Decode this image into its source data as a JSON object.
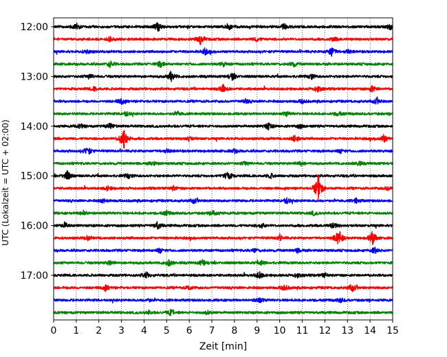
{
  "chart_data": {
    "type": "line",
    "title": "",
    "xlabel": "Zeit  [min]",
    "ylabel": "UTC (Lokalzeit = UTC + 02:00)",
    "xlim": [
      0,
      15
    ],
    "x_ticks": [
      "0",
      "1",
      "2",
      "3",
      "4",
      "5",
      "6",
      "7",
      "8",
      "9",
      "10",
      "11",
      "12",
      "13",
      "14",
      "15"
    ],
    "y_ticks": [
      "12:00",
      "13:00",
      "14:00",
      "15:00",
      "16:00",
      "17:00"
    ],
    "grid": "vertical dotted",
    "line_colors": [
      "#000000",
      "#ff0000",
      "#0000ff",
      "#008000"
    ],
    "trace_interval_min": 15,
    "series": [
      {
        "start": "12:00",
        "color": "#000000",
        "events": [
          [
            1.0,
            0.7
          ],
          [
            4.6,
            1.0
          ],
          [
            7.8,
            0.5
          ],
          [
            10.2,
            0.6
          ],
          [
            14.9,
            0.6
          ]
        ]
      },
      {
        "start": "12:15",
        "color": "#ff0000",
        "events": [
          [
            2.5,
            0.4
          ],
          [
            6.5,
            1.0
          ],
          [
            9.0,
            0.4
          ],
          [
            12.4,
            0.4
          ]
        ]
      },
      {
        "start": "12:30",
        "color": "#0000ff",
        "events": [
          [
            1.5,
            0.4
          ],
          [
            6.7,
            0.6
          ],
          [
            12.3,
            1.0
          ],
          [
            13.0,
            0.4
          ]
        ]
      },
      {
        "start": "12:45",
        "color": "#008000",
        "events": [
          [
            2.5,
            0.6
          ],
          [
            4.7,
            0.6
          ],
          [
            7.5,
            0.4
          ],
          [
            10.6,
            0.5
          ]
        ]
      },
      {
        "start": "13:00",
        "color": "#000000",
        "events": [
          [
            1.6,
            0.5
          ],
          [
            5.2,
            1.0
          ],
          [
            7.9,
            0.7
          ],
          [
            11.4,
            0.5
          ]
        ]
      },
      {
        "start": "13:15",
        "color": "#ff0000",
        "events": [
          [
            1.8,
            0.4
          ],
          [
            7.5,
            0.8
          ],
          [
            11.7,
            0.7
          ],
          [
            14.1,
            0.7
          ]
        ]
      },
      {
        "start": "13:30",
        "color": "#0000ff",
        "events": [
          [
            3.0,
            0.7
          ],
          [
            8.5,
            0.4
          ],
          [
            11.0,
            0.4
          ],
          [
            14.3,
            0.5
          ]
        ]
      },
      {
        "start": "13:45",
        "color": "#008000",
        "events": [
          [
            3.2,
            0.5
          ],
          [
            5.5,
            0.4
          ],
          [
            10.3,
            0.4
          ],
          [
            12.6,
            0.4
          ]
        ]
      },
      {
        "start": "14:00",
        "color": "#000000",
        "events": [
          [
            1.2,
            0.4
          ],
          [
            2.5,
            0.6
          ],
          [
            9.5,
            0.7
          ],
          [
            10.9,
            0.4
          ]
        ]
      },
      {
        "start": "14:15",
        "color": "#ff0000",
        "events": [
          [
            3.1,
            2.6
          ],
          [
            6.0,
            0.4
          ],
          [
            10.7,
            0.8
          ],
          [
            14.6,
            0.8
          ]
        ]
      },
      {
        "start": "14:30",
        "color": "#0000ff",
        "events": [
          [
            1.5,
            0.9
          ],
          [
            5.0,
            0.4
          ],
          [
            8.0,
            0.4
          ],
          [
            12.7,
            0.4
          ]
        ]
      },
      {
        "start": "14:45",
        "color": "#008000",
        "events": [
          [
            4.4,
            0.4
          ],
          [
            8.5,
            0.4
          ],
          [
            10.9,
            0.5
          ],
          [
            13.5,
            0.4
          ]
        ]
      },
      {
        "start": "15:00",
        "color": "#000000",
        "events": [
          [
            0.6,
            0.9
          ],
          [
            3.3,
            0.5
          ],
          [
            7.7,
            1.0
          ],
          [
            9.6,
            0.4
          ]
        ]
      },
      {
        "start": "15:15",
        "color": "#ff0000",
        "events": [
          [
            2.4,
            0.4
          ],
          [
            5.3,
            0.4
          ],
          [
            11.7,
            2.8
          ],
          [
            14.8,
            0.4
          ]
        ]
      },
      {
        "start": "15:30",
        "color": "#0000ff",
        "events": [
          [
            2.2,
            0.4
          ],
          [
            6.2,
            0.4
          ],
          [
            10.3,
            0.6
          ],
          [
            13.4,
            0.5
          ]
        ]
      },
      {
        "start": "15:45",
        "color": "#008000",
        "events": [
          [
            1.3,
            0.5
          ],
          [
            5.0,
            0.4
          ],
          [
            7.1,
            0.6
          ],
          [
            11.5,
            0.4
          ]
        ]
      },
      {
        "start": "16:00",
        "color": "#000000",
        "events": [
          [
            0.5,
            0.6
          ],
          [
            4.6,
            0.8
          ],
          [
            9.2,
            0.5
          ],
          [
            12.4,
            0.6
          ]
        ]
      },
      {
        "start": "16:15",
        "color": "#ff0000",
        "events": [
          [
            1.5,
            0.4
          ],
          [
            10.0,
            0.5
          ],
          [
            12.6,
            1.8
          ],
          [
            14.1,
            1.4
          ]
        ]
      },
      {
        "start": "16:30",
        "color": "#0000ff",
        "events": [
          [
            4.7,
            0.5
          ],
          [
            8.9,
            0.4
          ],
          [
            10.8,
            0.4
          ],
          [
            14.2,
            0.6
          ]
        ]
      },
      {
        "start": "16:45",
        "color": "#008000",
        "events": [
          [
            2.5,
            0.5
          ],
          [
            5.1,
            0.6
          ],
          [
            6.6,
            0.6
          ],
          [
            9.2,
            0.4
          ]
        ]
      },
      {
        "start": "17:00",
        "color": "#000000",
        "events": [
          [
            4.1,
            0.6
          ],
          [
            9.1,
            0.7
          ],
          [
            10.8,
            0.5
          ],
          [
            12.0,
            0.4
          ]
        ]
      },
      {
        "start": "17:15",
        "color": "#ff0000",
        "events": [
          [
            2.3,
            0.6
          ],
          [
            6.0,
            0.4
          ],
          [
            10.2,
            0.6
          ],
          [
            13.2,
            0.7
          ]
        ]
      },
      {
        "start": "17:30",
        "color": "#0000ff",
        "events": [
          [
            4.2,
            0.3
          ],
          [
            9.1,
            0.6
          ],
          [
            12.7,
            0.4
          ]
        ]
      },
      {
        "start": "17:45",
        "color": "#008000",
        "events": [
          [
            4.2,
            0.3
          ],
          [
            5.2,
            0.6
          ],
          [
            6.8,
            0.3
          ]
        ]
      }
    ]
  }
}
